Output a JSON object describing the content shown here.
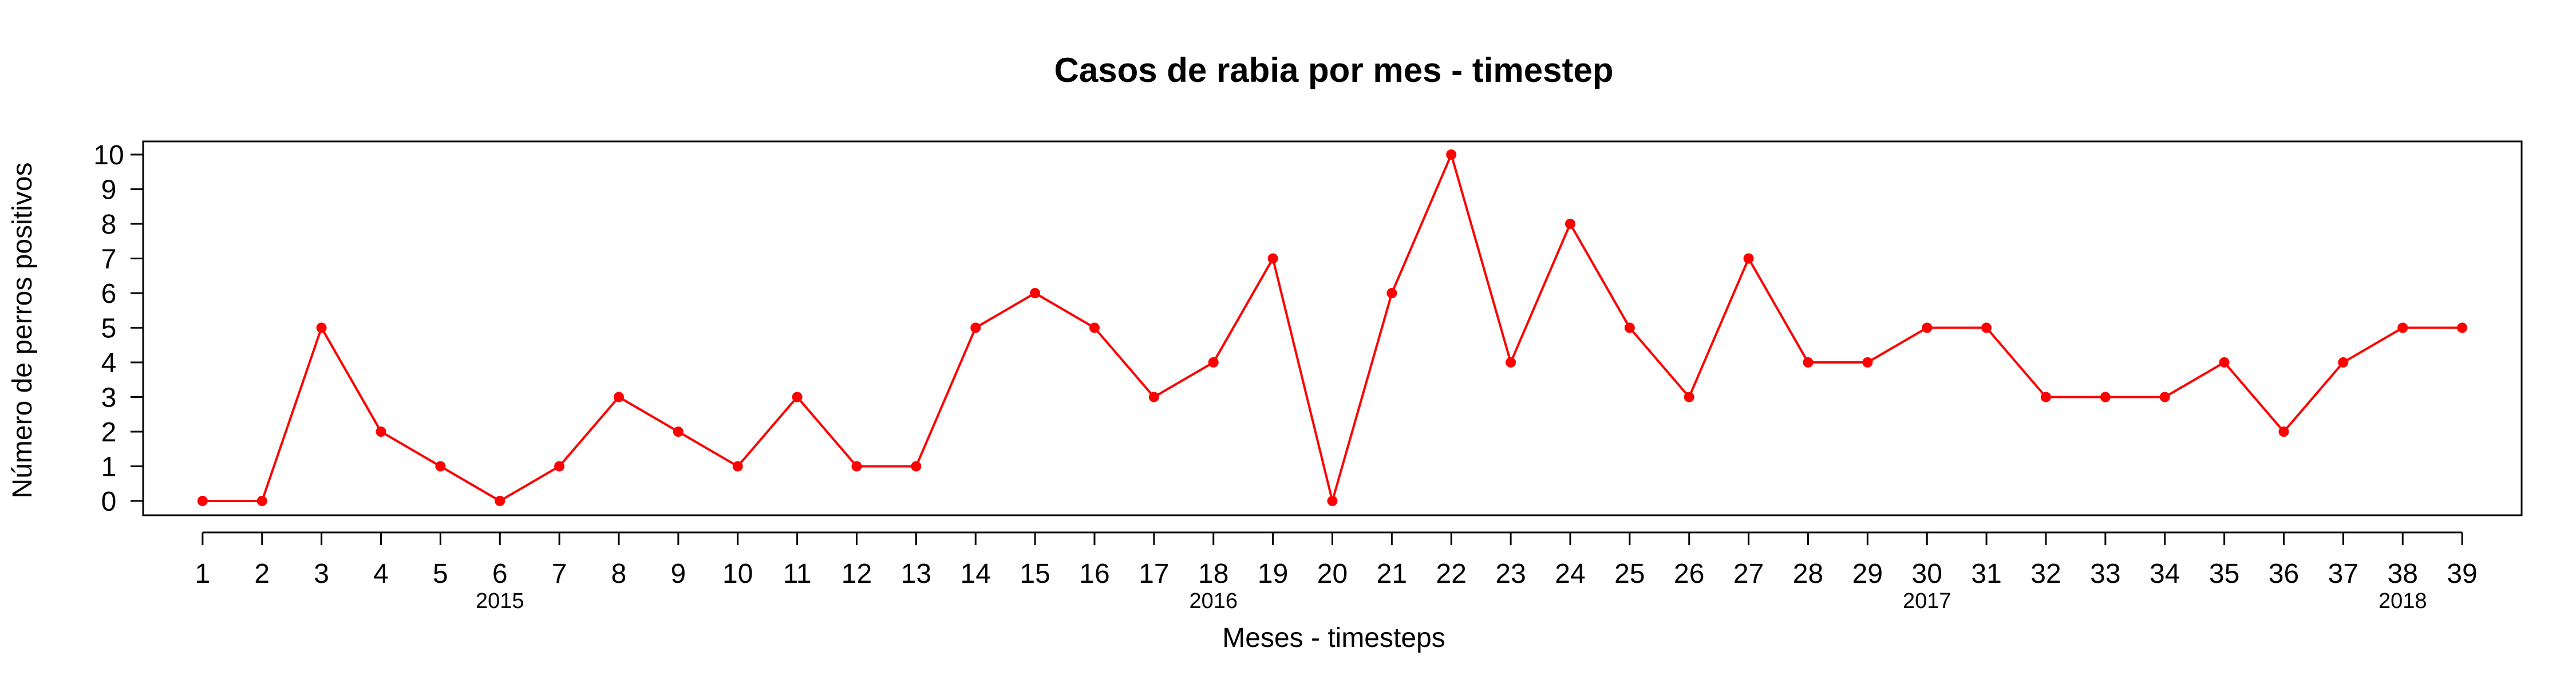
{
  "chart_data": {
    "type": "line",
    "title": "Casos de rabia por mes - timestep",
    "xlabel": "Meses - timesteps",
    "ylabel": "Número de perros positivos",
    "x": [
      1,
      2,
      3,
      4,
      5,
      6,
      7,
      8,
      9,
      10,
      11,
      12,
      13,
      14,
      15,
      16,
      17,
      18,
      19,
      20,
      21,
      22,
      23,
      24,
      25,
      26,
      27,
      28,
      29,
      30,
      31,
      32,
      33,
      34,
      35,
      36,
      37,
      38,
      39
    ],
    "series": [
      {
        "values": [
          0,
          0,
          5,
          2,
          1,
          0,
          1,
          3,
          2,
          1,
          3,
          1,
          1,
          5,
          6,
          5,
          3,
          4,
          7,
          0,
          6,
          10,
          4,
          8,
          5,
          3,
          7,
          4,
          4,
          5,
          5,
          3,
          3,
          3,
          4,
          2,
          4,
          5,
          5
        ]
      }
    ],
    "xlim": [
      0,
      40
    ],
    "ylim": [
      0,
      10
    ],
    "yticks": [
      0,
      1,
      2,
      3,
      4,
      5,
      6,
      7,
      8,
      9,
      10
    ],
    "year_labels": [
      {
        "label": "2015",
        "x": 6
      },
      {
        "label": "2016",
        "x": 18
      },
      {
        "label": "2017",
        "x": 30
      },
      {
        "label": "2018",
        "x": 38
      }
    ],
    "line_color": "#ff0000",
    "grid": false
  }
}
